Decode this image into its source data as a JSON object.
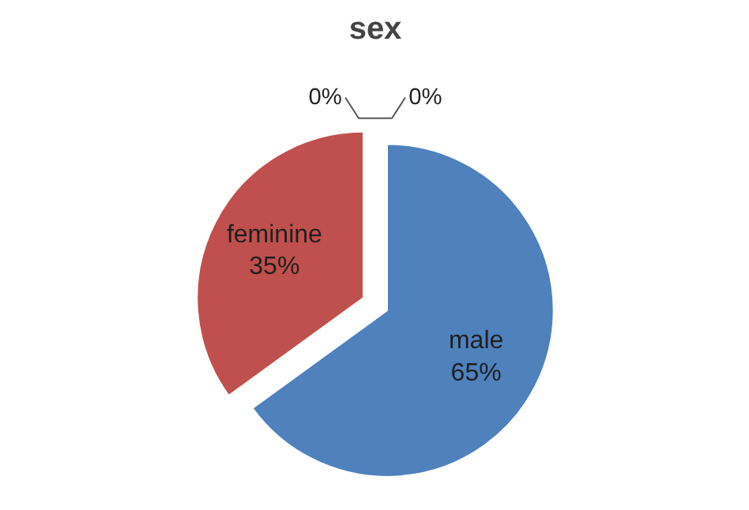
{
  "chart_data": {
    "type": "pie",
    "title": "sex",
    "categories": [
      "male",
      "feminine",
      null,
      null
    ],
    "values": [
      65,
      35,
      0,
      0
    ],
    "colors": [
      "#4f81bd",
      "#c0504d",
      "#9bbb59",
      "#8064a2"
    ],
    "value_labels": [
      "65%",
      "35%",
      "0%",
      "0%"
    ],
    "legend": false
  }
}
